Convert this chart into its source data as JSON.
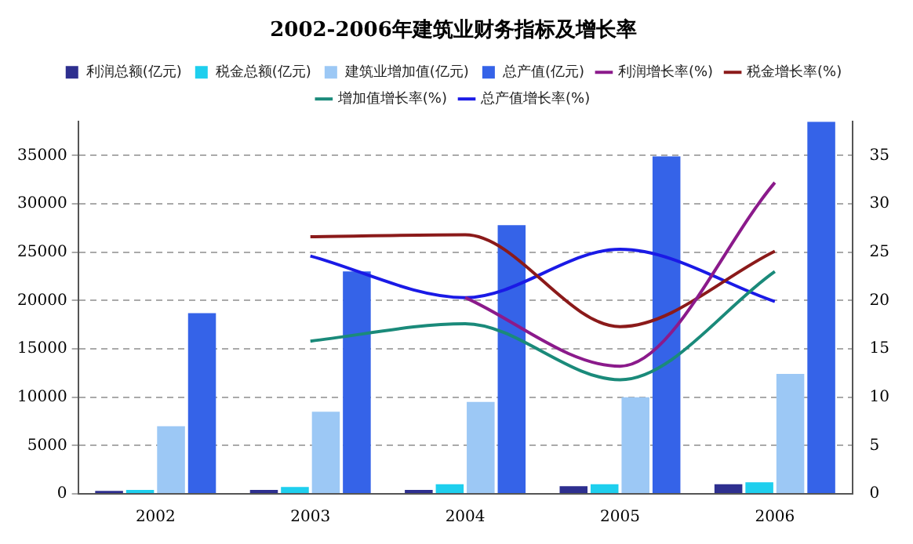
{
  "chart_data": {
    "type": "bar",
    "title": "2002-2006年建筑业财务指标及增长率",
    "categories": [
      "2002",
      "2003",
      "2004",
      "2005",
      "2006"
    ],
    "series": [
      {
        "name": "利润总额(亿元)",
        "color": "#2e2f8f",
        "values": [
          300,
          400,
          400,
          800,
          1000
        ]
      },
      {
        "name": "税金总额(亿元)",
        "color": "#1ecfee",
        "values": [
          400,
          700,
          1000,
          1000,
          1200
        ]
      },
      {
        "name": "建筑业增加值(亿元)",
        "color": "#9cc8f5",
        "values": [
          7000,
          8500,
          9500,
          10000,
          12400
        ]
      },
      {
        "name": "总产值(亿元)",
        "color": "#3563e8",
        "values": [
          18700,
          23000,
          27800,
          34900,
          38500
        ]
      },
      {
        "name": "利润增长率(%)",
        "type": "line",
        "axis": "y2",
        "color": "#8b1a8b",
        "values": [
          null,
          null,
          20.3,
          13.2,
          32.2
        ]
      },
      {
        "name": "税金增长率(%)",
        "type": "line",
        "axis": "y2",
        "color": "#8b1a1a",
        "values": [
          null,
          26.6,
          26.8,
          17.3,
          25.1
        ]
      },
      {
        "name": "增加值增长率(%)",
        "type": "line",
        "axis": "y2",
        "color": "#1a8a7a",
        "values": [
          null,
          15.8,
          17.6,
          11.8,
          23
        ]
      },
      {
        "name": "总产值增长率(%)",
        "type": "line",
        "axis": "y2",
        "color": "#1a1ae6",
        "values": [
          null,
          24.6,
          20.3,
          25.3,
          19.9
        ]
      }
    ],
    "ylim": [
      0,
      38500
    ],
    "yticks": [
      0,
      5000,
      10000,
      15000,
      20000,
      25000,
      30000,
      35000
    ],
    "y2lim": [
      0,
      38.5
    ],
    "y2ticks": [
      0,
      5,
      10,
      15,
      20,
      25,
      30,
      35
    ],
    "grid": "y",
    "legend": "top",
    "marker": "none",
    "line_style": "solid"
  }
}
